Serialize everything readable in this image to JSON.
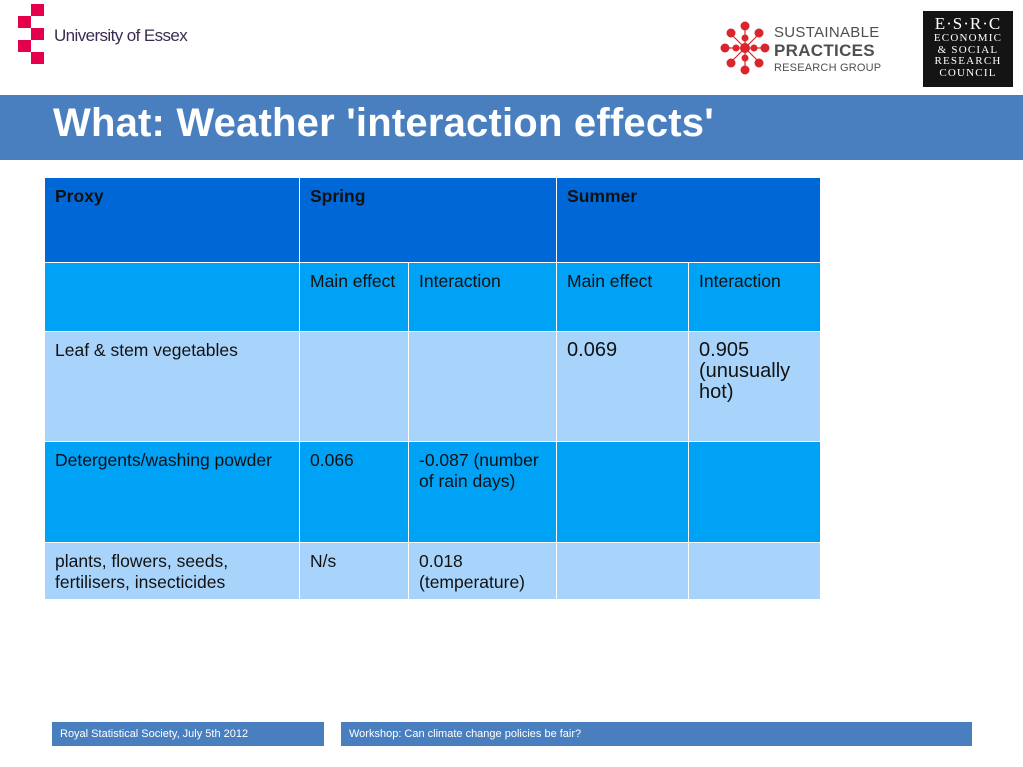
{
  "header": {
    "university_logo_text": "University of Essex",
    "sprg_logo": {
      "line1": "SUSTAINABLE",
      "line2": "PRACTICES",
      "line3": "RESEARCH GROUP",
      "dot_color": "#d9262c"
    },
    "esrc_logo": {
      "line1": "E·S·R·C",
      "line2": "ECONOMIC",
      "line3": "& SOCIAL",
      "line4": "RESEARCH",
      "line5": "COUNCIL"
    }
  },
  "slide": {
    "title": "What: Weather 'interaction effects'"
  },
  "table": {
    "headers": {
      "proxy": "Proxy",
      "spring": "Spring",
      "summer": "Summer"
    },
    "subheaders": {
      "spring_main": "Main effect",
      "spring_interaction": "Interaction",
      "summer_main": "Main effect",
      "summer_interaction": "Interaction"
    },
    "rows": [
      {
        "proxy": "Leaf & stem vegetables",
        "spring_main": "",
        "spring_interaction": "",
        "summer_main": "0.069",
        "summer_interaction": "0.905 (unusually hot)"
      },
      {
        "proxy": "Detergents/washing powder",
        "spring_main": "0.066",
        "spring_interaction": "-0.087 (number of rain days)",
        "summer_main": "",
        "summer_interaction": ""
      },
      {
        "proxy": "plants, flowers, seeds, fertilisers, insecticides",
        "spring_main": "N/s",
        "spring_interaction": "0.018 (temperature)",
        "summer_main": "",
        "summer_interaction": ""
      }
    ]
  },
  "footer": {
    "left": "Royal Statistical Society, July 5th 2012",
    "right": "Workshop: Can climate change policies be fair?"
  },
  "colors": {
    "title_bar": "#4a7fbf",
    "header_row": "#0067d6",
    "mid_blue": "#00a2f5",
    "light_blue": "#a8d4fb",
    "essex_red": "#e4004b"
  }
}
